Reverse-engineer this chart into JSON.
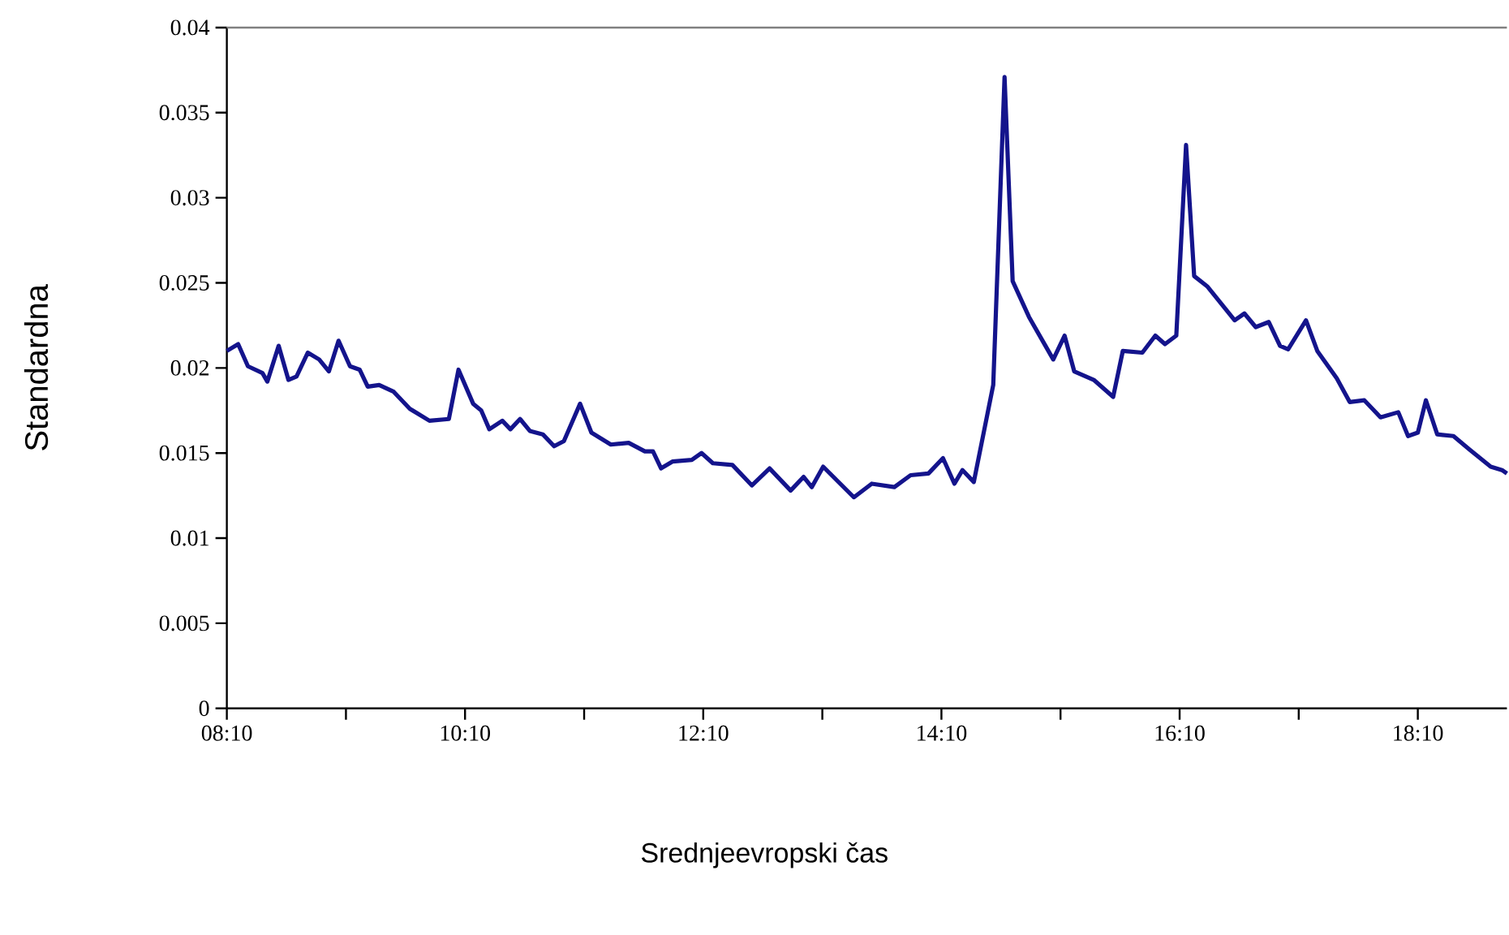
{
  "chart_data": {
    "type": "line",
    "xlabel": "Srednjeevropski čas",
    "ylabel": "Standardna",
    "x": [
      8.167,
      8.262,
      8.344,
      8.466,
      8.507,
      8.602,
      8.684,
      8.752,
      8.847,
      8.942,
      9.024,
      9.105,
      9.201,
      9.282,
      9.35,
      9.446,
      9.568,
      9.704,
      9.868,
      10.031,
      10.112,
      10.235,
      10.303,
      10.371,
      10.48,
      10.548,
      10.629,
      10.711,
      10.82,
      10.915,
      10.997,
      11.133,
      11.228,
      11.391,
      11.541,
      11.677,
      11.745,
      11.813,
      11.908,
      12.071,
      12.153,
      12.248,
      12.412,
      12.575,
      12.724,
      12.901,
      13.01,
      13.078,
      13.174,
      13.432,
      13.582,
      13.772,
      13.908,
      14.058,
      14.18,
      14.276,
      14.344,
      14.439,
      14.602,
      14.697,
      14.765,
      14.902,
      15.106,
      15.201,
      15.282,
      15.446,
      15.609,
      15.69,
      15.854,
      15.963,
      16.044,
      16.139,
      16.221,
      16.289,
      16.398,
      16.629,
      16.711,
      16.806,
      16.915,
      17.01,
      17.078,
      17.228,
      17.323,
      17.486,
      17.595,
      17.718,
      17.854,
      18.003,
      18.085,
      18.167,
      18.235,
      18.33,
      18.466,
      18.602,
      18.779,
      18.874,
      18.915
    ],
    "series": [
      {
        "color": "#14148c",
        "values": [
          0.021,
          0.0214,
          0.0201,
          0.0197,
          0.0192,
          0.0213,
          0.0193,
          0.0195,
          0.0209,
          0.0205,
          0.0198,
          0.0216,
          0.0201,
          0.0199,
          0.0189,
          0.019,
          0.0186,
          0.0176,
          0.0169,
          0.017,
          0.0199,
          0.0179,
          0.0175,
          0.0164,
          0.0169,
          0.0164,
          0.017,
          0.0163,
          0.0161,
          0.0154,
          0.0157,
          0.0179,
          0.0162,
          0.0155,
          0.0156,
          0.0151,
          0.0151,
          0.0141,
          0.0145,
          0.0146,
          0.015,
          0.0144,
          0.0143,
          0.0131,
          0.0141,
          0.0128,
          0.0136,
          0.013,
          0.0142,
          0.0124,
          0.0132,
          0.013,
          0.0137,
          0.0138,
          0.0147,
          0.0132,
          0.014,
          0.0133,
          0.019,
          0.0371,
          0.0251,
          0.023,
          0.0205,
          0.0219,
          0.0198,
          0.0193,
          0.0183,
          0.021,
          0.0209,
          0.0219,
          0.0214,
          0.0219,
          0.0331,
          0.0254,
          0.0248,
          0.0228,
          0.0232,
          0.0224,
          0.0227,
          0.0213,
          0.0211,
          0.0228,
          0.021,
          0.0194,
          0.018,
          0.0181,
          0.0171,
          0.0174,
          0.016,
          0.0162,
          0.0181,
          0.0161,
          0.016,
          0.0152,
          0.0142,
          0.014,
          0.0138
        ]
      }
    ],
    "xlim": [
      8.167,
      18.915
    ],
    "ylim": [
      0,
      0.04
    ],
    "xticks": [
      {
        "value": 8.167,
        "label": "08:10"
      },
      {
        "value": 9.167,
        "label": null
      },
      {
        "value": 10.167,
        "label": "10:10"
      },
      {
        "value": 11.167,
        "label": null
      },
      {
        "value": 12.167,
        "label": "12:10"
      },
      {
        "value": 13.167,
        "label": null
      },
      {
        "value": 14.167,
        "label": "14:10"
      },
      {
        "value": 15.167,
        "label": null
      },
      {
        "value": 16.167,
        "label": "16:10"
      },
      {
        "value": 17.167,
        "label": null
      },
      {
        "value": 18.167,
        "label": "18:10"
      }
    ],
    "yticks": [
      0,
      0.005,
      0.01,
      0.015,
      0.02,
      0.025,
      0.03,
      0.035,
      0.04
    ],
    "marker": "none",
    "line_style": "solid"
  }
}
